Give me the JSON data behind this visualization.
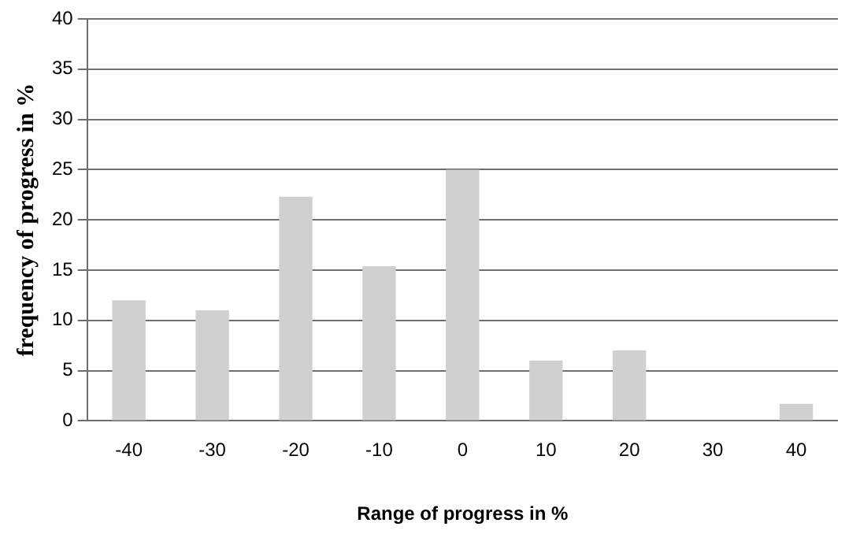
{
  "chart_data": {
    "type": "bar",
    "xlabel": "Range of progress in %",
    "ylabel": "frequency of progress in %",
    "categories": [
      "-40",
      "-30",
      "-20",
      "-10",
      "0",
      "10",
      "20",
      "30",
      "40"
    ],
    "values": [
      12,
      11,
      22.3,
      15.4,
      25,
      6,
      7,
      0,
      1.7
    ],
    "color": "#d0d0d0",
    "ylim": [
      0,
      40
    ],
    "yticks": [
      0,
      5,
      10,
      15,
      20,
      25,
      30,
      35,
      40
    ],
    "grid": "y",
    "legend": false
  }
}
